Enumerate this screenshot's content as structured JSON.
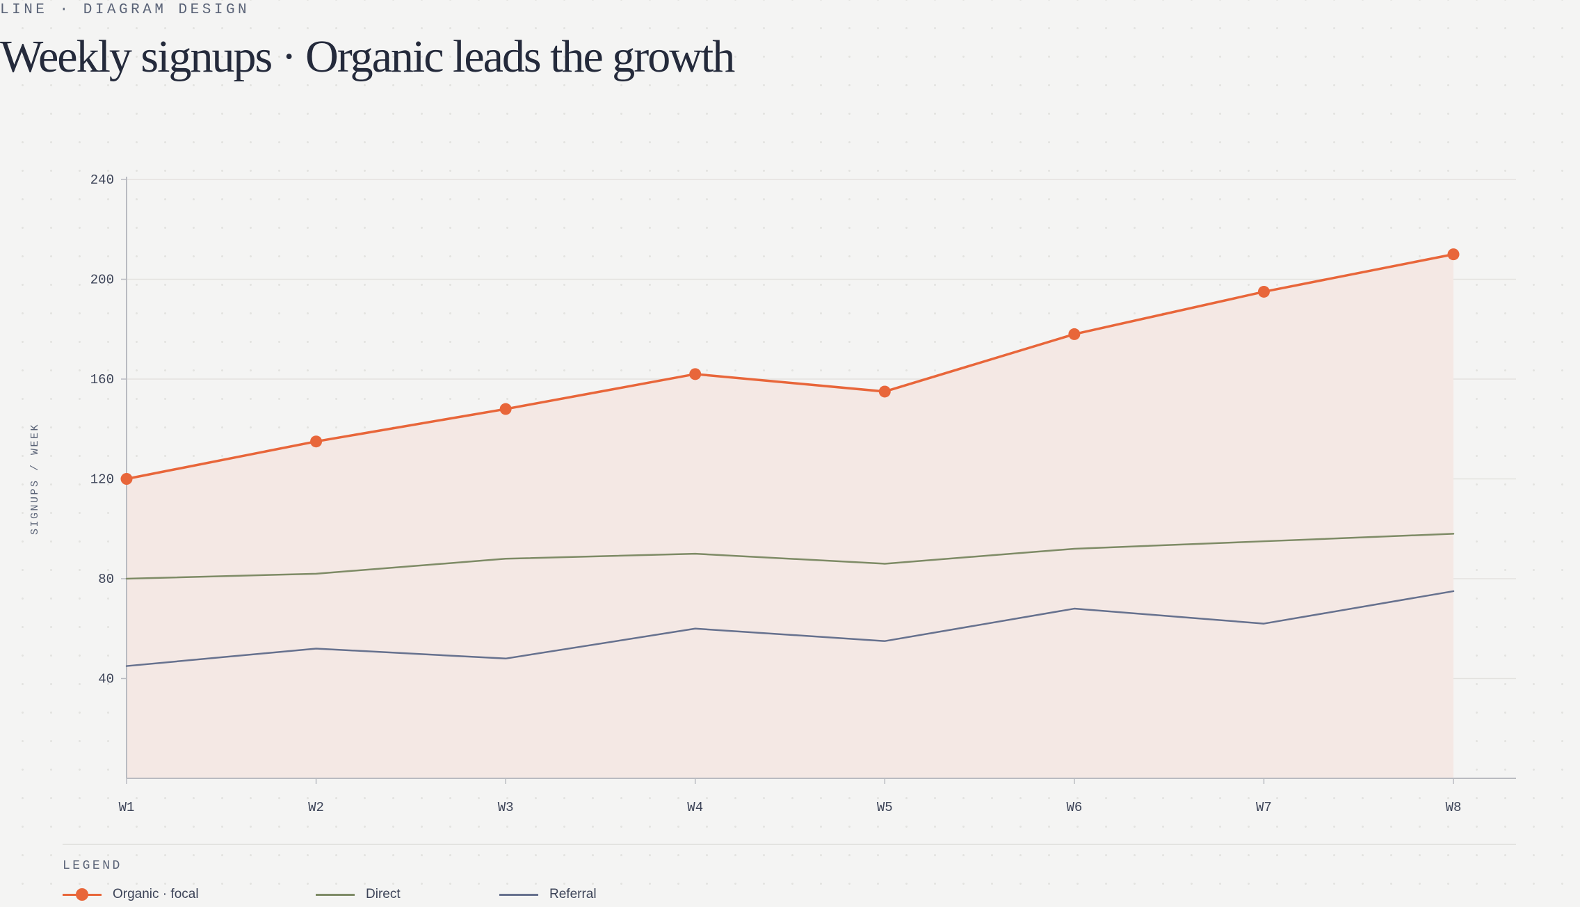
{
  "header": {
    "eyebrow": "LINE · DIAGRAM DESIGN",
    "title": "Weekly signups · Organic leads the growth"
  },
  "legend": {
    "title": "LEGEND",
    "items": [
      {
        "label": "Organic · focal",
        "color": "#e8663a",
        "marker": "dot"
      },
      {
        "label": "Direct",
        "color": "#7e8b66",
        "marker": "line"
      },
      {
        "label": "Referral",
        "color": "#66718e",
        "marker": "line"
      }
    ]
  },
  "colors": {
    "focal": "#e8663a",
    "area_fill": "#f4e8e4",
    "direct": "#7e8b66",
    "referral": "#66718e",
    "grid": "#e3e2df",
    "axis": "#b9bbc1",
    "background": "#f4f4f3"
  },
  "chart_data": {
    "type": "line",
    "title": "Weekly signups · Organic leads the growth",
    "xlabel": "",
    "ylabel": "SIGNUPS / WEEK",
    "categories": [
      "W1",
      "W2",
      "W3",
      "W4",
      "W5",
      "W6",
      "W7",
      "W8"
    ],
    "ylim": [
      0,
      240
    ],
    "yticks": [
      40,
      80,
      120,
      160,
      200,
      240
    ],
    "grid": true,
    "legend_position": "bottom-left",
    "series": [
      {
        "name": "Organic · focal",
        "values": [
          120,
          135,
          148,
          162,
          155,
          178,
          195,
          210
        ],
        "color": "#e8663a",
        "markers": true,
        "area_fill": true
      },
      {
        "name": "Direct",
        "values": [
          80,
          82,
          88,
          90,
          86,
          92,
          95,
          98
        ],
        "color": "#7e8b66",
        "markers": false,
        "area_fill": false
      },
      {
        "name": "Referral",
        "values": [
          45,
          52,
          48,
          60,
          55,
          68,
          62,
          75
        ],
        "color": "#66718e",
        "markers": false,
        "area_fill": false
      }
    ]
  }
}
